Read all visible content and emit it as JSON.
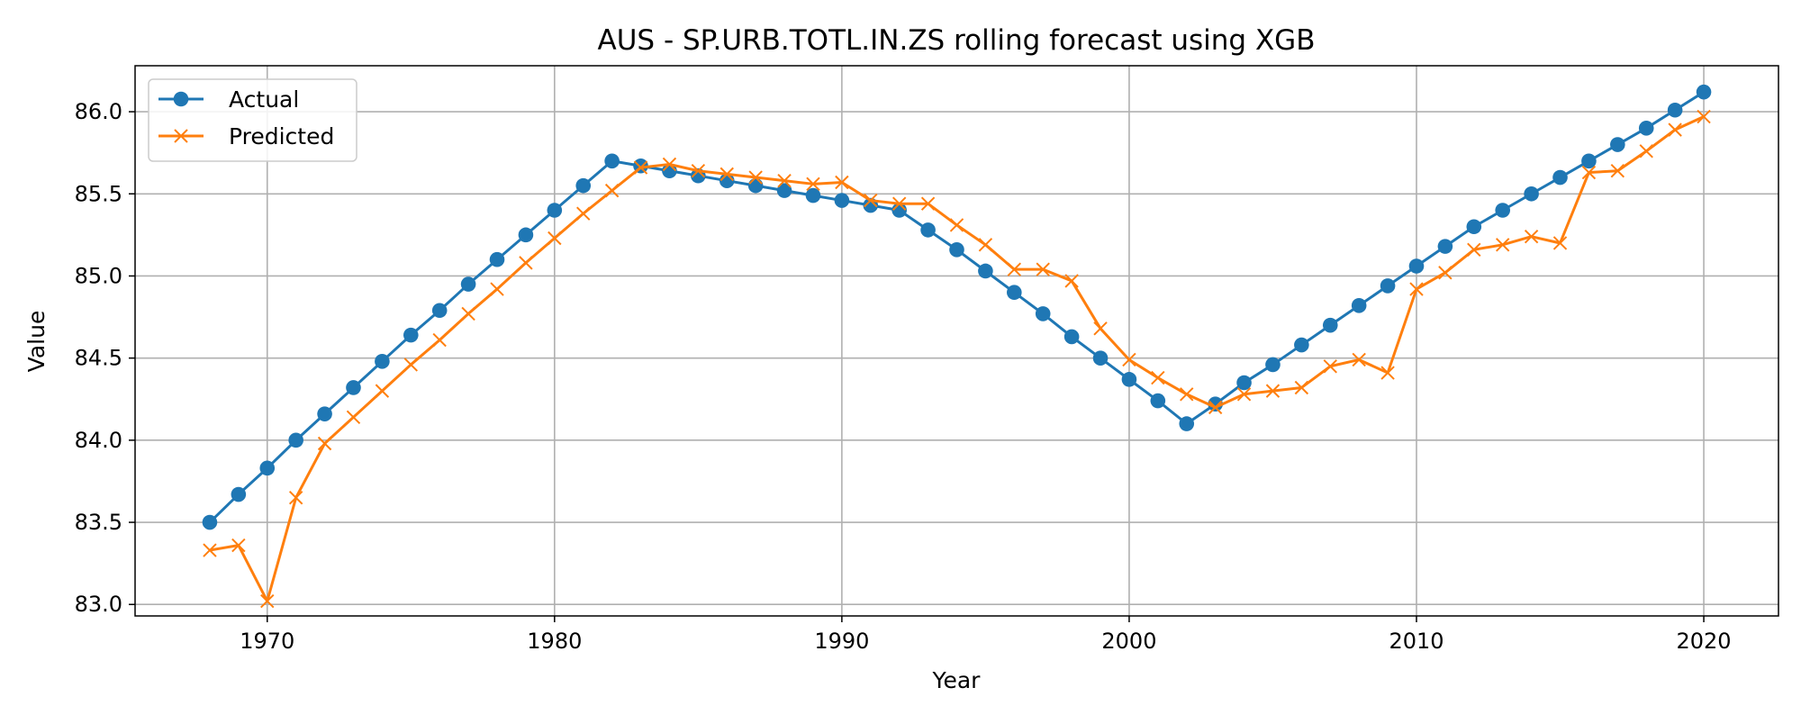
{
  "chart_data": {
    "type": "line",
    "title": "AUS - SP.URB.TOTL.IN.ZS rolling forecast using XGB",
    "xlabel": "Year",
    "ylabel": "Value",
    "xlim": [
      1965.4,
      2022.6
    ],
    "ylim": [
      82.93,
      86.28
    ],
    "x_ticks": [
      1970,
      1980,
      1990,
      2000,
      2010,
      2020
    ],
    "y_ticks": [
      83.0,
      83.5,
      84.0,
      84.5,
      85.0,
      85.5,
      86.0
    ],
    "x_tick_labels": [
      "1970",
      "1980",
      "1990",
      "2000",
      "2010",
      "2020"
    ],
    "y_tick_labels": [
      "83.0",
      "83.5",
      "84.0",
      "84.5",
      "85.0",
      "85.5",
      "86.0"
    ],
    "grid": true,
    "legend_position": "upper-left",
    "x": [
      1968,
      1969,
      1970,
      1971,
      1972,
      1973,
      1974,
      1975,
      1976,
      1977,
      1978,
      1979,
      1980,
      1981,
      1982,
      1983,
      1984,
      1985,
      1986,
      1987,
      1988,
      1989,
      1990,
      1991,
      1992,
      1993,
      1994,
      1995,
      1996,
      1997,
      1998,
      1999,
      2000,
      2001,
      2002,
      2003,
      2004,
      2005,
      2006,
      2007,
      2008,
      2009,
      2010,
      2011,
      2012,
      2013,
      2014,
      2015,
      2016,
      2017,
      2018,
      2019,
      2020
    ],
    "series": [
      {
        "name": "Actual",
        "color": "#1f77b4",
        "marker": "circle",
        "values": [
          83.5,
          83.67,
          83.83,
          84.0,
          84.16,
          84.32,
          84.48,
          84.64,
          84.79,
          84.95,
          85.1,
          85.25,
          85.4,
          85.55,
          85.7,
          85.67,
          85.64,
          85.61,
          85.58,
          85.55,
          85.52,
          85.49,
          85.46,
          85.43,
          85.4,
          85.28,
          85.16,
          85.03,
          84.9,
          84.77,
          84.63,
          84.5,
          84.37,
          84.24,
          84.1,
          84.22,
          84.35,
          84.46,
          84.58,
          84.7,
          84.82,
          84.94,
          85.06,
          85.18,
          85.3,
          85.4,
          85.5,
          85.6,
          85.7,
          85.8,
          85.9,
          86.01,
          86.12
        ]
      },
      {
        "name": "Predicted",
        "color": "#ff7f0e",
        "marker": "x",
        "values": [
          83.33,
          83.36,
          83.02,
          83.65,
          83.98,
          84.14,
          84.3,
          84.46,
          84.61,
          84.77,
          84.92,
          85.08,
          85.23,
          85.38,
          85.52,
          85.66,
          85.68,
          85.64,
          85.62,
          85.6,
          85.58,
          85.56,
          85.57,
          85.46,
          85.44,
          85.44,
          85.31,
          85.19,
          85.04,
          85.04,
          84.97,
          84.68,
          84.49,
          84.38,
          84.28,
          84.2,
          84.28,
          84.3,
          84.32,
          84.45,
          84.49,
          84.41,
          84.92,
          85.02,
          85.16,
          85.19,
          85.24,
          85.2,
          85.63,
          85.64,
          85.76,
          85.89,
          85.97
        ]
      }
    ]
  }
}
